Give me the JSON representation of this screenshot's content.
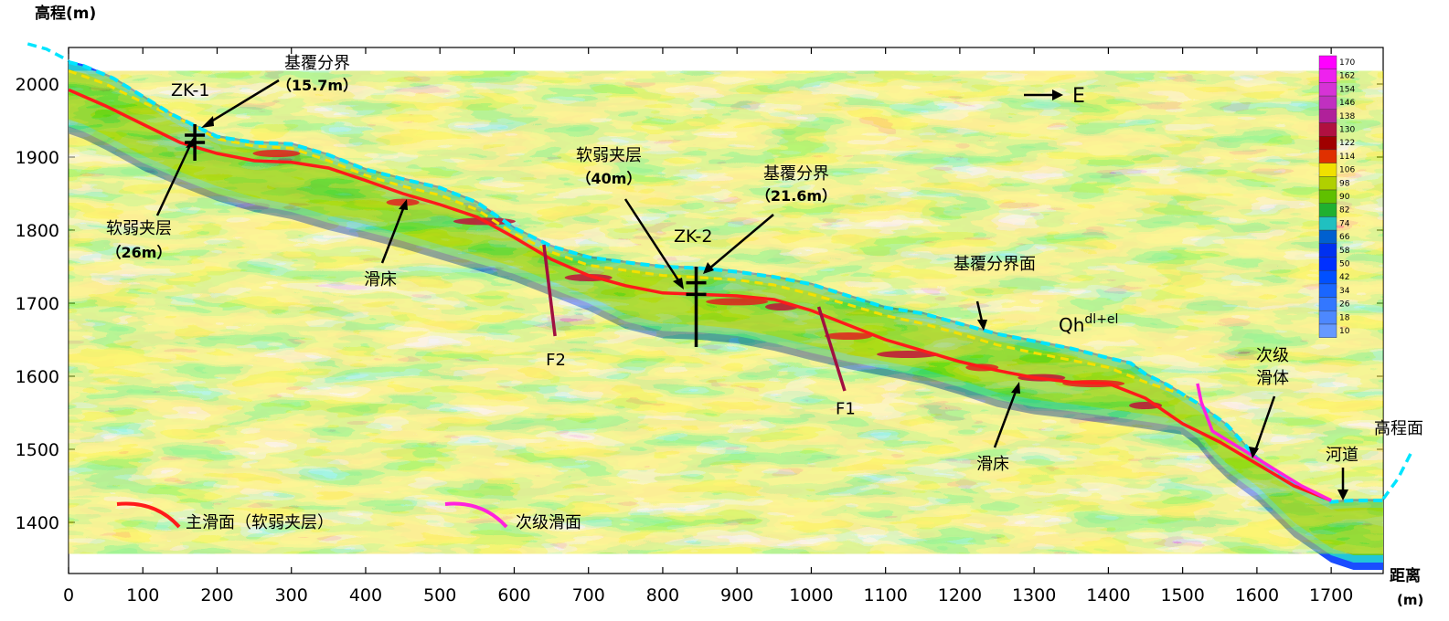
{
  "chart_data": {
    "type": "heatmap",
    "title": "",
    "xlabel": "距离",
    "xunit": "(m)",
    "ylabel": "高程(m)",
    "xlim": [
      0,
      1770
    ],
    "ylim": [
      1330,
      2050
    ],
    "x_ticks": [
      0,
      100,
      200,
      300,
      400,
      500,
      600,
      700,
      800,
      900,
      1000,
      1100,
      1200,
      1300,
      1400,
      1500,
      1600,
      1700
    ],
    "y_ticks": [
      1400,
      1500,
      1600,
      1700,
      1800,
      1900,
      2000
    ],
    "colorbar": {
      "ticks": [
        170,
        162,
        154,
        146,
        138,
        130,
        122,
        114,
        106,
        98,
        90,
        82,
        74,
        66,
        58,
        50,
        42,
        34,
        26,
        18,
        10
      ],
      "colors": [
        "#ff00ff",
        "#ee22ee",
        "#d633d6",
        "#c030c0",
        "#b0209a",
        "#b01040",
        "#a00000",
        "#e03000",
        "#f0e000",
        "#b0d000",
        "#60c000",
        "#20b030",
        "#20c0c0",
        "#0060d0",
        "#0030f0",
        "#0030ff",
        "#0050ff",
        "#1a66ff",
        "#3377ff",
        "#4d88ff",
        "#6699ff"
      ]
    },
    "surface": [
      [
        0,
        2032
      ],
      [
        20,
        2027
      ],
      [
        60,
        2010
      ],
      [
        100,
        1985
      ],
      [
        140,
        1960
      ],
      [
        170,
        1945
      ],
      [
        200,
        1930
      ],
      [
        250,
        1922
      ],
      [
        300,
        1920
      ],
      [
        350,
        1905
      ],
      [
        400,
        1885
      ],
      [
        450,
        1872
      ],
      [
        500,
        1860
      ],
      [
        550,
        1840
      ],
      [
        600,
        1805
      ],
      [
        650,
        1780
      ],
      [
        700,
        1765
      ],
      [
        750,
        1758
      ],
      [
        800,
        1752
      ],
      [
        850,
        1750
      ],
      [
        900,
        1745
      ],
      [
        950,
        1738
      ],
      [
        1000,
        1728
      ],
      [
        1050,
        1712
      ],
      [
        1100,
        1696
      ],
      [
        1150,
        1688
      ],
      [
        1200,
        1674
      ],
      [
        1250,
        1660
      ],
      [
        1300,
        1650
      ],
      [
        1350,
        1640
      ],
      [
        1400,
        1627
      ],
      [
        1430,
        1620
      ],
      [
        1450,
        1605
      ],
      [
        1480,
        1590
      ],
      [
        1520,
        1565
      ],
      [
        1560,
        1535
      ],
      [
        1600,
        1490
      ],
      [
        1650,
        1455
      ],
      [
        1700,
        1430
      ],
      [
        1730,
        1432
      ],
      [
        1770,
        1432
      ]
    ],
    "surface_extension_left": [
      [
        -55,
        2055
      ],
      [
        -30,
        2048
      ],
      [
        0,
        2032
      ]
    ],
    "surface_extension_right": [
      [
        1770,
        1432
      ],
      [
        1790,
        1460
      ],
      [
        1810,
        1500
      ]
    ],
    "bottom": [
      [
        0,
        1932
      ],
      [
        20,
        1925
      ],
      [
        50,
        1910
      ],
      [
        100,
        1882
      ],
      [
        150,
        1860
      ],
      [
        200,
        1840
      ],
      [
        250,
        1825
      ],
      [
        300,
        1815
      ],
      [
        350,
        1800
      ],
      [
        400,
        1788
      ],
      [
        450,
        1775
      ],
      [
        500,
        1760
      ],
      [
        550,
        1745
      ],
      [
        600,
        1730
      ],
      [
        650,
        1710
      ],
      [
        700,
        1690
      ],
      [
        750,
        1665
      ],
      [
        800,
        1652
      ],
      [
        850,
        1650
      ],
      [
        900,
        1645
      ],
      [
        950,
        1635
      ],
      [
        1000,
        1622
      ],
      [
        1050,
        1610
      ],
      [
        1100,
        1600
      ],
      [
        1150,
        1590
      ],
      [
        1200,
        1575
      ],
      [
        1250,
        1558
      ],
      [
        1300,
        1548
      ],
      [
        1350,
        1542
      ],
      [
        1400,
        1535
      ],
      [
        1450,
        1528
      ],
      [
        1500,
        1520
      ],
      [
        1520,
        1505
      ],
      [
        1540,
        1480
      ],
      [
        1560,
        1460
      ],
      [
        1600,
        1430
      ],
      [
        1650,
        1380
      ],
      [
        1700,
        1345
      ],
      [
        1730,
        1335
      ],
      [
        1770,
        1335
      ]
    ],
    "bedrock_boundary": [
      [
        0,
        2018
      ],
      [
        50,
        2000
      ],
      [
        100,
        1975
      ],
      [
        150,
        1952
      ],
      [
        200,
        1925
      ],
      [
        250,
        1915
      ],
      [
        300,
        1912
      ],
      [
        350,
        1895
      ],
      [
        400,
        1875
      ],
      [
        450,
        1860
      ],
      [
        500,
        1848
      ],
      [
        550,
        1828
      ],
      [
        600,
        1795
      ],
      [
        650,
        1770
      ],
      [
        700,
        1752
      ],
      [
        750,
        1745
      ],
      [
        800,
        1738
      ],
      [
        850,
        1735
      ],
      [
        900,
        1732
      ],
      [
        950,
        1725
      ],
      [
        1000,
        1712
      ],
      [
        1050,
        1698
      ],
      [
        1100,
        1683
      ],
      [
        1150,
        1672
      ],
      [
        1200,
        1658
      ],
      [
        1250,
        1643
      ],
      [
        1300,
        1632
      ],
      [
        1350,
        1622
      ],
      [
        1400,
        1612
      ],
      [
        1450,
        1592
      ],
      [
        1500,
        1575
      ],
      [
        1530,
        1555
      ]
    ],
    "main_slip_surface": [
      [
        0,
        1992
      ],
      [
        50,
        1970
      ],
      [
        100,
        1945
      ],
      [
        150,
        1920
      ],
      [
        200,
        1905
      ],
      [
        250,
        1895
      ],
      [
        300,
        1893
      ],
      [
        350,
        1885
      ],
      [
        400,
        1868
      ],
      [
        450,
        1850
      ],
      [
        500,
        1835
      ],
      [
        550,
        1818
      ],
      [
        600,
        1790
      ],
      [
        650,
        1760
      ],
      [
        700,
        1738
      ],
      [
        750,
        1724
      ],
      [
        800,
        1714
      ],
      [
        850,
        1712
      ],
      [
        900,
        1710
      ],
      [
        950,
        1705
      ],
      [
        1000,
        1690
      ],
      [
        1050,
        1670
      ],
      [
        1100,
        1650
      ],
      [
        1150,
        1635
      ],
      [
        1200,
        1620
      ],
      [
        1250,
        1608
      ],
      [
        1300,
        1598
      ],
      [
        1350,
        1592
      ],
      [
        1400,
        1590
      ],
      [
        1450,
        1570
      ],
      [
        1500,
        1535
      ],
      [
        1550,
        1510
      ],
      [
        1600,
        1480
      ],
      [
        1650,
        1450
      ],
      [
        1700,
        1430
      ]
    ],
    "secondary_slip_surface": [
      [
        1520,
        1590
      ],
      [
        1525,
        1565
      ],
      [
        1540,
        1525
      ],
      [
        1580,
        1500
      ],
      [
        1620,
        1475
      ],
      [
        1660,
        1450
      ],
      [
        1700,
        1430
      ]
    ],
    "faults": [
      {
        "name": "F1",
        "line": [
          [
            1010,
            1695
          ],
          [
            1045,
            1580
          ]
        ],
        "label_at": [
          1045,
          1548
        ]
      },
      {
        "name": "F2",
        "line": [
          [
            640,
            1780
          ],
          [
            655,
            1655
          ]
        ],
        "label_at": [
          655,
          1615
        ]
      }
    ],
    "boreholes": [
      {
        "name": "ZK-1",
        "x": 170,
        "top": 1945,
        "bottom": 1895,
        "crosses": [
          1930,
          1920
        ]
      },
      {
        "name": "ZK-2",
        "x": 845,
        "top": 1750,
        "bottom": 1640,
        "crosses": [
          1728,
          1712
        ]
      }
    ],
    "annotations": {
      "zk1_boundary_title": "基覆分界",
      "zk1_boundary_depth": "（15.7m）",
      "zk1_weak_title": "软弱夹层",
      "zk1_weak_depth": "（26m）",
      "zk2_weak_title": "软弱夹层",
      "zk2_weak_depth": "（40m）",
      "zk2_boundary_title": "基覆分界",
      "zk2_boundary_depth": "（21.6m）",
      "slip_bed_1": "滑床",
      "slip_bed_2": "滑床",
      "boundary_surface": "基覆分界面",
      "qh_base": "Qh",
      "qh_sup": "dl+el",
      "secondary_body_line1": "次级",
      "secondary_body_line2": "滑体",
      "river": "河道",
      "elevation_surface": "高程面",
      "east": "E"
    },
    "legend": [
      {
        "label": "主滑面（软弱夹层）",
        "color": "#ff1a1a"
      },
      {
        "label": "次级滑面",
        "color": "#ff22dd"
      }
    ]
  }
}
